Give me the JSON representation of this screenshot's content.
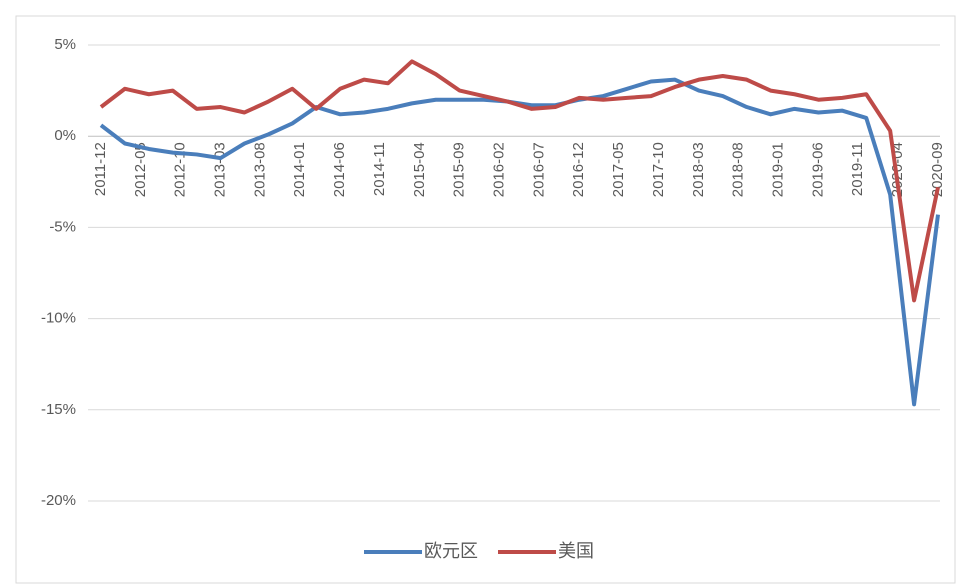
{
  "chart_data": {
    "type": "line",
    "x": [
      "2011-12",
      "2012-03",
      "2012-06",
      "2012-09",
      "2012-12",
      "2013-03",
      "2013-06",
      "2013-09",
      "2013-12",
      "2014-03",
      "2014-06",
      "2014-09",
      "2014-12",
      "2015-03",
      "2015-06",
      "2015-09",
      "2015-12",
      "2016-03",
      "2016-06",
      "2016-09",
      "2016-12",
      "2017-03",
      "2017-06",
      "2017-09",
      "2017-12",
      "2018-03",
      "2018-06",
      "2018-09",
      "2018-12",
      "2019-03",
      "2019-06",
      "2019-09",
      "2019-12",
      "2020-03",
      "2020-06",
      "2020-09"
    ],
    "series": [
      {
        "name": "欧元区",
        "color": "#4a7ebb",
        "values": [
          0.6,
          -0.4,
          -0.7,
          -0.9,
          -1.0,
          -1.2,
          -0.4,
          0.1,
          0.7,
          1.6,
          1.2,
          1.3,
          1.5,
          1.8,
          2.0,
          2.0,
          2.0,
          1.9,
          1.7,
          1.7,
          2.0,
          2.2,
          2.6,
          3.0,
          3.1,
          2.5,
          2.2,
          1.6,
          1.2,
          1.5,
          1.3,
          1.4,
          1.0,
          -3.2,
          -14.7,
          -4.3
        ]
      },
      {
        "name": "美国",
        "color": "#be4b48",
        "values": [
          1.6,
          2.6,
          2.3,
          2.5,
          1.5,
          1.6,
          1.3,
          1.9,
          2.6,
          1.5,
          2.6,
          3.1,
          2.9,
          4.1,
          3.4,
          2.5,
          2.2,
          1.9,
          1.5,
          1.6,
          2.1,
          2.0,
          2.1,
          2.2,
          2.7,
          3.1,
          3.3,
          3.1,
          2.5,
          2.3,
          2.0,
          2.1,
          2.3,
          0.3,
          -9.0,
          -2.8
        ]
      }
    ],
    "xlim": [
      "2011-12",
      "2020-09"
    ],
    "xticks": [
      "2011-12",
      "2012-05",
      "2012-10",
      "2013-03",
      "2013-08",
      "2014-01",
      "2014-06",
      "2014-11",
      "2015-04",
      "2015-09",
      "2016-02",
      "2016-07",
      "2016-12",
      "2017-05",
      "2017-10",
      "2018-03",
      "2018-08",
      "2019-01",
      "2019-06",
      "2019-11",
      "2020-04",
      "2020-09"
    ],
    "ylim": [
      -20,
      5
    ],
    "yticks": [
      {
        "value": -20,
        "label": "-20%"
      },
      {
        "value": -15,
        "label": "-15%"
      },
      {
        "value": -10,
        "label": "-10%"
      },
      {
        "value": -5,
        "label": "-5%"
      },
      {
        "value": 0,
        "label": "0%"
      },
      {
        "value": 5,
        "label": "5%"
      }
    ],
    "grid": true,
    "legend": "bottom"
  }
}
